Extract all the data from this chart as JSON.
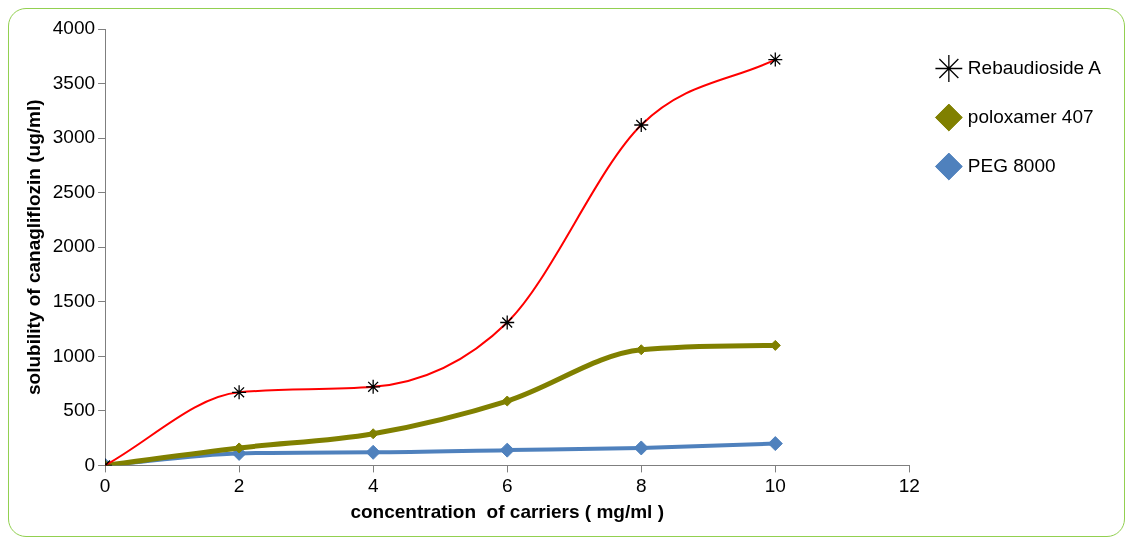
{
  "chart_data": {
    "type": "line",
    "xlabel": "concentration  of carriers ( mg/ml )",
    "ylabel": "solubility of canagliflozin (ug/ml)",
    "x": [
      0,
      2,
      4,
      6,
      8,
      10
    ],
    "series": [
      {
        "name": "Rebaudioside A",
        "color": "#ff0000",
        "marker": "cross",
        "values": [
          0,
          670,
          720,
          1310,
          3120,
          3720
        ]
      },
      {
        "name": "poloxamer 407",
        "color": "#808000",
        "marker": "diamond",
        "values": [
          0,
          160,
          290,
          590,
          1060,
          1100
        ]
      },
      {
        "name": "PEG 8000",
        "color": "#4f81bd",
        "marker": "diamond",
        "values": [
          0,
          110,
          120,
          140,
          160,
          200
        ]
      }
    ],
    "xlim": [
      0,
      12
    ],
    "xticks": [
      0,
      2,
      4,
      6,
      8,
      10,
      12
    ],
    "ylim": [
      0,
      4000
    ],
    "yticks": [
      0,
      500,
      1000,
      1500,
      2000,
      2500,
      3000,
      3500,
      4000
    ],
    "grid": false,
    "legend": "right"
  }
}
